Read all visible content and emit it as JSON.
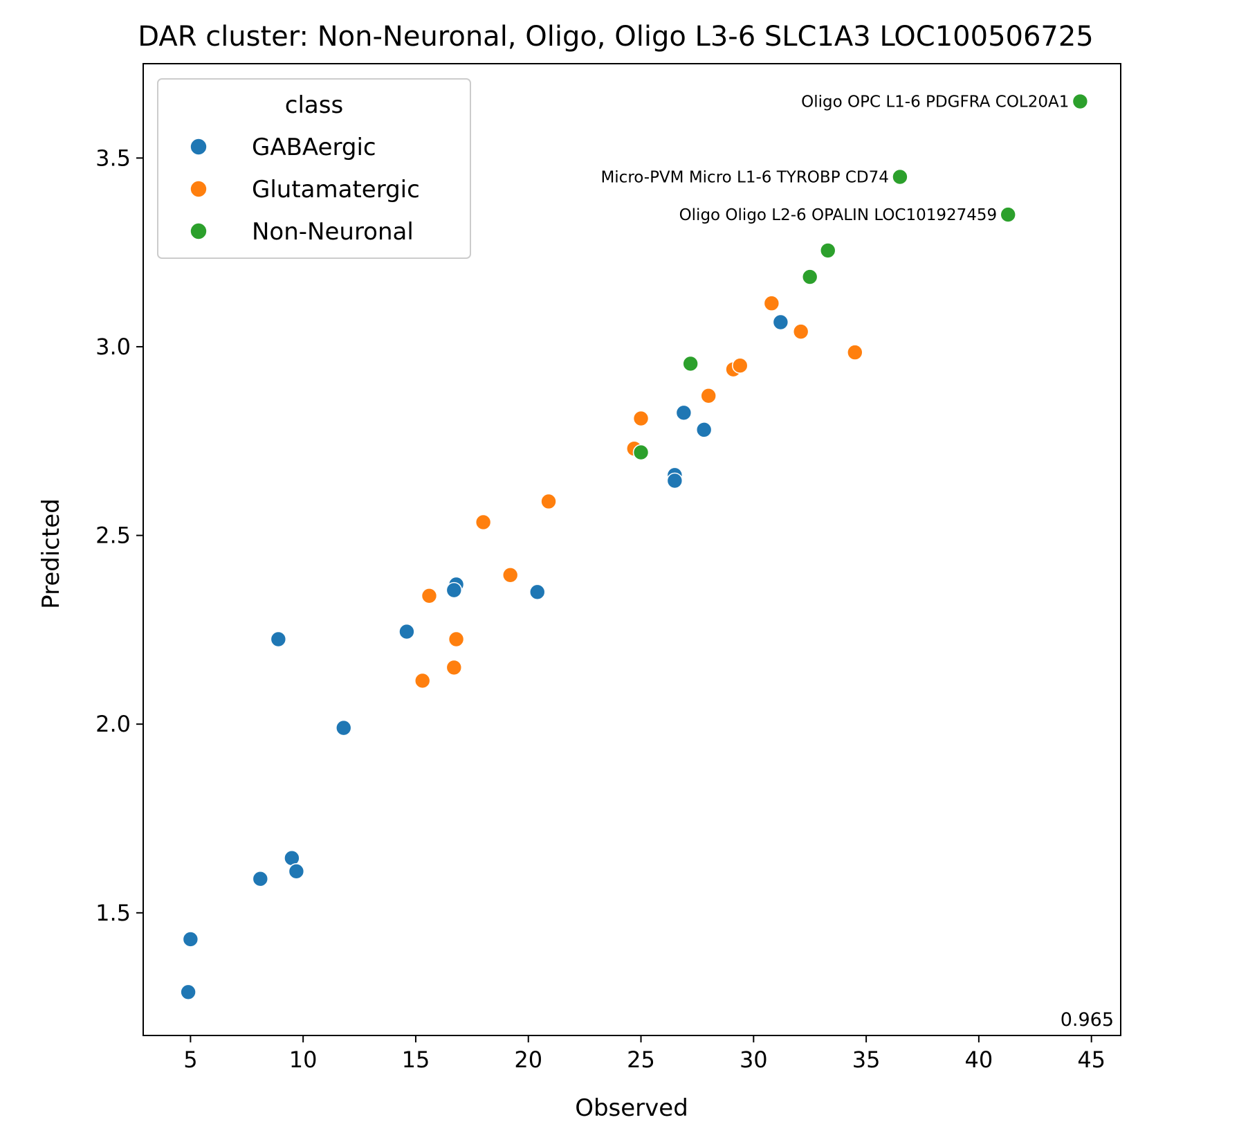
{
  "chart_data": {
    "type": "scatter",
    "title": "DAR cluster: Non-Neuronal, Oligo, Oligo L3-6 SLC1A3 LOC100506725",
    "xlabel": "Observed",
    "ylabel": "Predicted",
    "xlim": [
      2.9,
      46.3
    ],
    "ylim": [
      1.175,
      3.75
    ],
    "xticks": [
      5,
      10,
      15,
      20,
      25,
      30,
      35,
      40,
      45
    ],
    "yticks": [
      1.5,
      2.0,
      2.5,
      3.0,
      3.5
    ],
    "xtick_labels": [
      "5",
      "10",
      "15",
      "20",
      "25",
      "30",
      "35",
      "40",
      "45"
    ],
    "ytick_labels": [
      "1.5",
      "2.0",
      "2.5",
      "3.0",
      "3.5"
    ],
    "grid": false,
    "legend": {
      "title": "class",
      "position": "top-left",
      "entries": [
        "GABAergic",
        "Glutamatergic",
        "Non-Neuronal"
      ]
    },
    "colors": {
      "GABAergic": "#1f77b4",
      "Glutamatergic": "#ff7f0e",
      "Non-Neuronal": "#2ca02c"
    },
    "series": [
      {
        "name": "GABAergic",
        "points": [
          [
            4.9,
            1.29
          ],
          [
            5.0,
            1.43
          ],
          [
            8.1,
            1.59
          ],
          [
            9.5,
            1.645
          ],
          [
            9.7,
            1.61
          ],
          [
            8.9,
            2.225
          ],
          [
            11.8,
            1.99
          ],
          [
            14.6,
            2.245
          ],
          [
            16.8,
            2.37
          ],
          [
            16.7,
            2.355
          ],
          [
            20.4,
            2.35
          ],
          [
            26.5,
            2.66
          ],
          [
            26.5,
            2.645
          ],
          [
            26.9,
            2.825
          ],
          [
            27.8,
            2.78
          ],
          [
            31.2,
            3.065
          ]
        ]
      },
      {
        "name": "Glutamatergic",
        "points": [
          [
            15.3,
            2.115
          ],
          [
            15.6,
            2.34
          ],
          [
            16.7,
            2.15
          ],
          [
            16.8,
            2.225
          ],
          [
            18.0,
            2.535
          ],
          [
            19.2,
            2.395
          ],
          [
            20.9,
            2.59
          ],
          [
            24.7,
            2.73
          ],
          [
            25.0,
            2.81
          ],
          [
            28.0,
            2.87
          ],
          [
            29.1,
            2.94
          ],
          [
            29.4,
            2.95
          ],
          [
            30.8,
            3.115
          ],
          [
            32.1,
            3.04
          ],
          [
            34.5,
            2.985
          ]
        ]
      },
      {
        "name": "Non-Neuronal",
        "points": [
          [
            25.0,
            2.72
          ],
          [
            27.2,
            2.955
          ],
          [
            32.5,
            3.185
          ],
          [
            33.3,
            3.255
          ],
          [
            41.3,
            3.35
          ],
          [
            36.5,
            3.45
          ],
          [
            44.5,
            3.65
          ]
        ]
      }
    ],
    "annotations": [
      {
        "text": "Oligo OPC L1-6 PDGFRA COL20A1",
        "x": 44.5,
        "y": 3.65
      },
      {
        "text": "Micro-PVM Micro L1-6 TYROBP CD74",
        "x": 36.5,
        "y": 3.45
      },
      {
        "text": "Oligo Oligo L2-6 OPALIN LOC101927459",
        "x": 41.3,
        "y": 3.35
      }
    ],
    "corner_text": "0.965"
  }
}
